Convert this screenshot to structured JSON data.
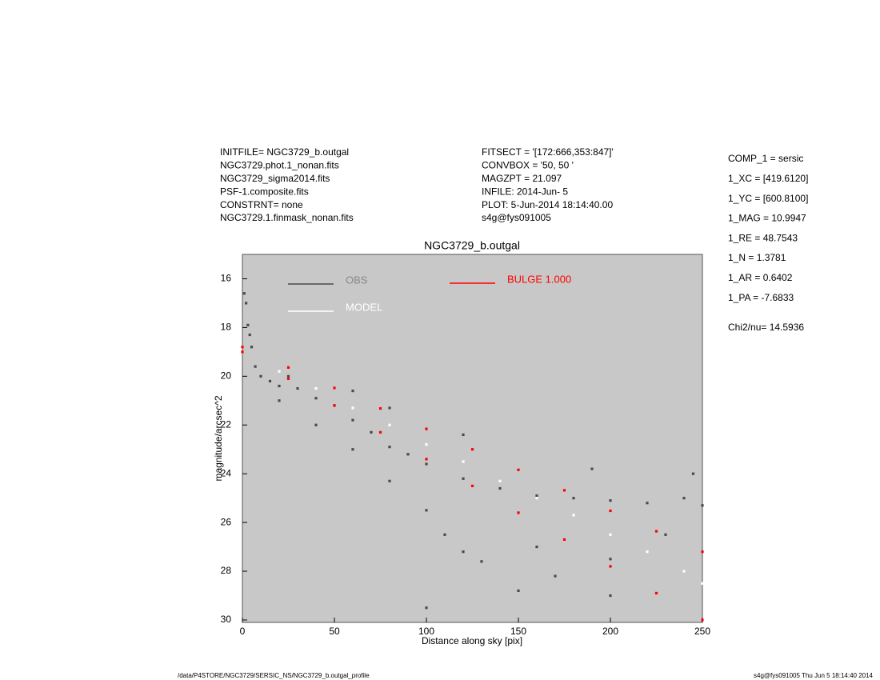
{
  "chart_data": {
    "type": "scatter",
    "title": "NGC3729_b.outgal",
    "x_label": "Distance along sky [pix]",
    "y_label": "magnitude/arcsec^2",
    "xlim": [
      0,
      250
    ],
    "ylim": [
      30.1,
      15
    ],
    "xticks": [
      0,
      50,
      100,
      150,
      200,
      250
    ],
    "yticks": [
      16,
      18,
      20,
      22,
      24,
      26,
      28,
      30
    ],
    "background": "#c8c8c8",
    "header_left": [
      "INITFILE= NGC3729_b.outgal",
      "NGC3729.phot.1_nonan.fits",
      "NGC3729_sigma2014.fits",
      "PSF-1.composite.fits",
      "CONSTRNT= none",
      "NGC3729.1.finmask_nonan.fits"
    ],
    "header_middle": [
      "FITSECT = '[172:666,353:847]'",
      "CONVBOX = '50, 50  '",
      "MAGZPT =              21.097",
      "INFILE: 2014-Jun- 5",
      "PLOT:  5-Jun-2014 18:14:40.00",
      "s4g@fys091005"
    ],
    "header_right": [
      "COMP_1  = sersic",
      "1_XC    = [419.6120]",
      "1_YC    = [600.8100]",
      "1_MAG   = 10.9947",
      "1_RE    = 48.7543",
      "1_N     = 1.3781",
      "1_AR    = 0.6402",
      "1_PA    = -7.6833",
      "Chi2/nu=      14.5936"
    ],
    "footer_left": "/data/P4STORE/NGC3729/SERSIC_NS/NGC3729_b.outgal_profile",
    "footer_right": "s4g@fys091005  Thu Jun  5 18:14:40 2014",
    "series": [
      {
        "name": "OBS",
        "color": "#4a4a4a",
        "x": [
          1,
          2,
          3,
          4,
          5,
          7,
          10,
          15,
          20,
          25,
          30,
          40,
          50,
          60,
          70,
          80,
          90,
          100,
          120,
          140,
          160,
          180,
          200,
          220,
          240,
          250,
          20,
          40,
          60,
          80,
          100,
          110,
          120,
          130,
          100,
          150,
          200,
          160,
          200,
          230,
          245,
          190,
          120,
          80,
          60,
          170
        ],
        "values": [
          16.6,
          17.0,
          17.9,
          18.3,
          18.8,
          19.6,
          20.0,
          20.2,
          20.4,
          20.0,
          20.5,
          20.9,
          21.2,
          21.8,
          22.3,
          22.9,
          23.2,
          23.6,
          24.2,
          24.6,
          24.9,
          25.0,
          25.1,
          25.2,
          25.0,
          25.3,
          21.0,
          22.0,
          23.0,
          24.3,
          25.5,
          26.5,
          27.2,
          27.6,
          29.5,
          28.8,
          29.0,
          27.0,
          27.5,
          26.5,
          24.0,
          23.8,
          22.4,
          21.3,
          20.6,
          28.2
        ]
      },
      {
        "name": "MODEL",
        "color": "#ffffff",
        "x": [
          20,
          40,
          60,
          80,
          100,
          120,
          140,
          160,
          180,
          200,
          220,
          240,
          250
        ],
        "values": [
          19.8,
          20.5,
          21.3,
          22.0,
          22.8,
          23.5,
          24.3,
          25.0,
          25.7,
          26.5,
          27.2,
          28.0,
          28.5
        ]
      },
      {
        "name": "BULGE  1.000",
        "color": "#ff0000",
        "x": [
          0,
          25,
          50,
          75,
          100,
          125,
          150,
          175,
          200,
          225,
          250,
          0,
          25,
          50,
          75,
          100,
          125,
          150,
          175,
          200,
          225,
          250
        ],
        "values": [
          18.8,
          19.64,
          20.48,
          21.32,
          22.16,
          23.0,
          23.84,
          24.68,
          25.52,
          26.36,
          27.2,
          19.0,
          20.1,
          21.2,
          22.3,
          23.4,
          24.5,
          25.6,
          26.7,
          27.8,
          28.9,
          30.0
        ]
      }
    ]
  }
}
